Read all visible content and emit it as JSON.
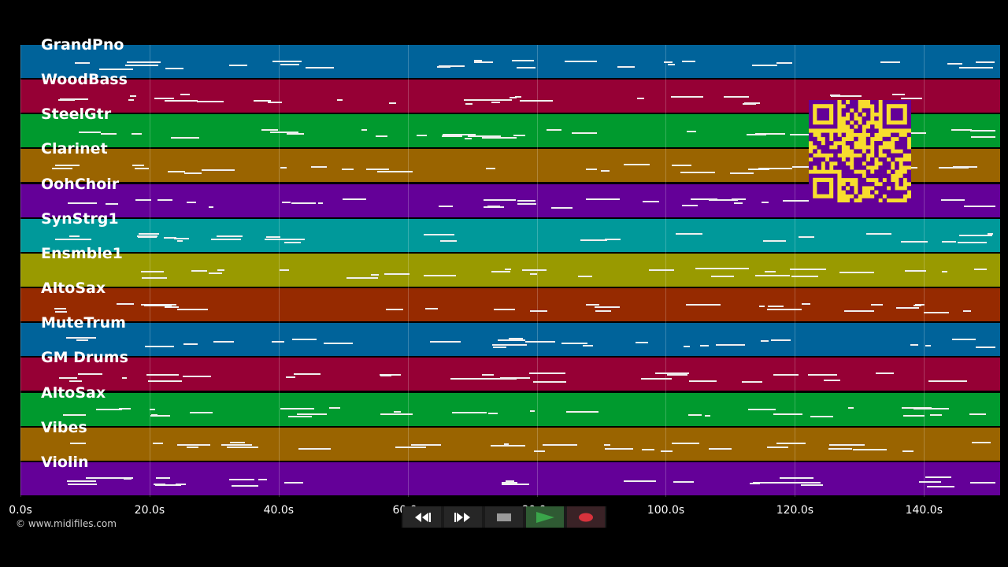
{
  "tracks": [
    {
      "name": "GrandPno",
      "color": "#00639a"
    },
    {
      "name": "WoodBass",
      "color": "#960035"
    },
    {
      "name": "SteelGtr",
      "color": "#009a2e"
    },
    {
      "name": "Clarinet",
      "color": "#9a6400"
    },
    {
      "name": "OohChoir",
      "color": "#640098"
    },
    {
      "name": "SynStrg1",
      "color": "#00999a"
    },
    {
      "name": "Ensmble1",
      "color": "#999a00"
    },
    {
      "name": "AltoSax",
      "color": "#962a00"
    },
    {
      "name": "MuteTrum",
      "color": "#00639a"
    },
    {
      "name": "GM Drums",
      "color": "#960035"
    },
    {
      "name": "AltoSax",
      "color": "#009a2e"
    },
    {
      "name": "Vibes",
      "color": "#9a6400"
    },
    {
      "name": "Violin",
      "color": "#640098"
    }
  ],
  "timeline": {
    "max_seconds": 151.8,
    "ticks": [
      "0.0s",
      "20.0s",
      "40.0s",
      "60.0s",
      "80.0s",
      "100.0s",
      "120.0s",
      "140.0s"
    ],
    "tick_values": [
      0,
      20,
      40,
      60,
      80,
      100,
      120,
      140
    ]
  },
  "copyright": "© www.midifiles.com",
  "qr_code": {
    "icon": "qr-code-icon",
    "color": "#f7dd2e",
    "module_color": "#640098"
  },
  "transport": {
    "buttons": [
      {
        "name": "rewind-button",
        "icon": "rewind-icon"
      },
      {
        "name": "fast-forward-button",
        "icon": "fast-forward-icon"
      },
      {
        "name": "stop-button",
        "icon": "stop-icon"
      },
      {
        "name": "play-button",
        "icon": "play-icon",
        "color": "#3aa64a"
      },
      {
        "name": "record-button",
        "icon": "record-icon",
        "color": "#d8323c"
      }
    ]
  }
}
